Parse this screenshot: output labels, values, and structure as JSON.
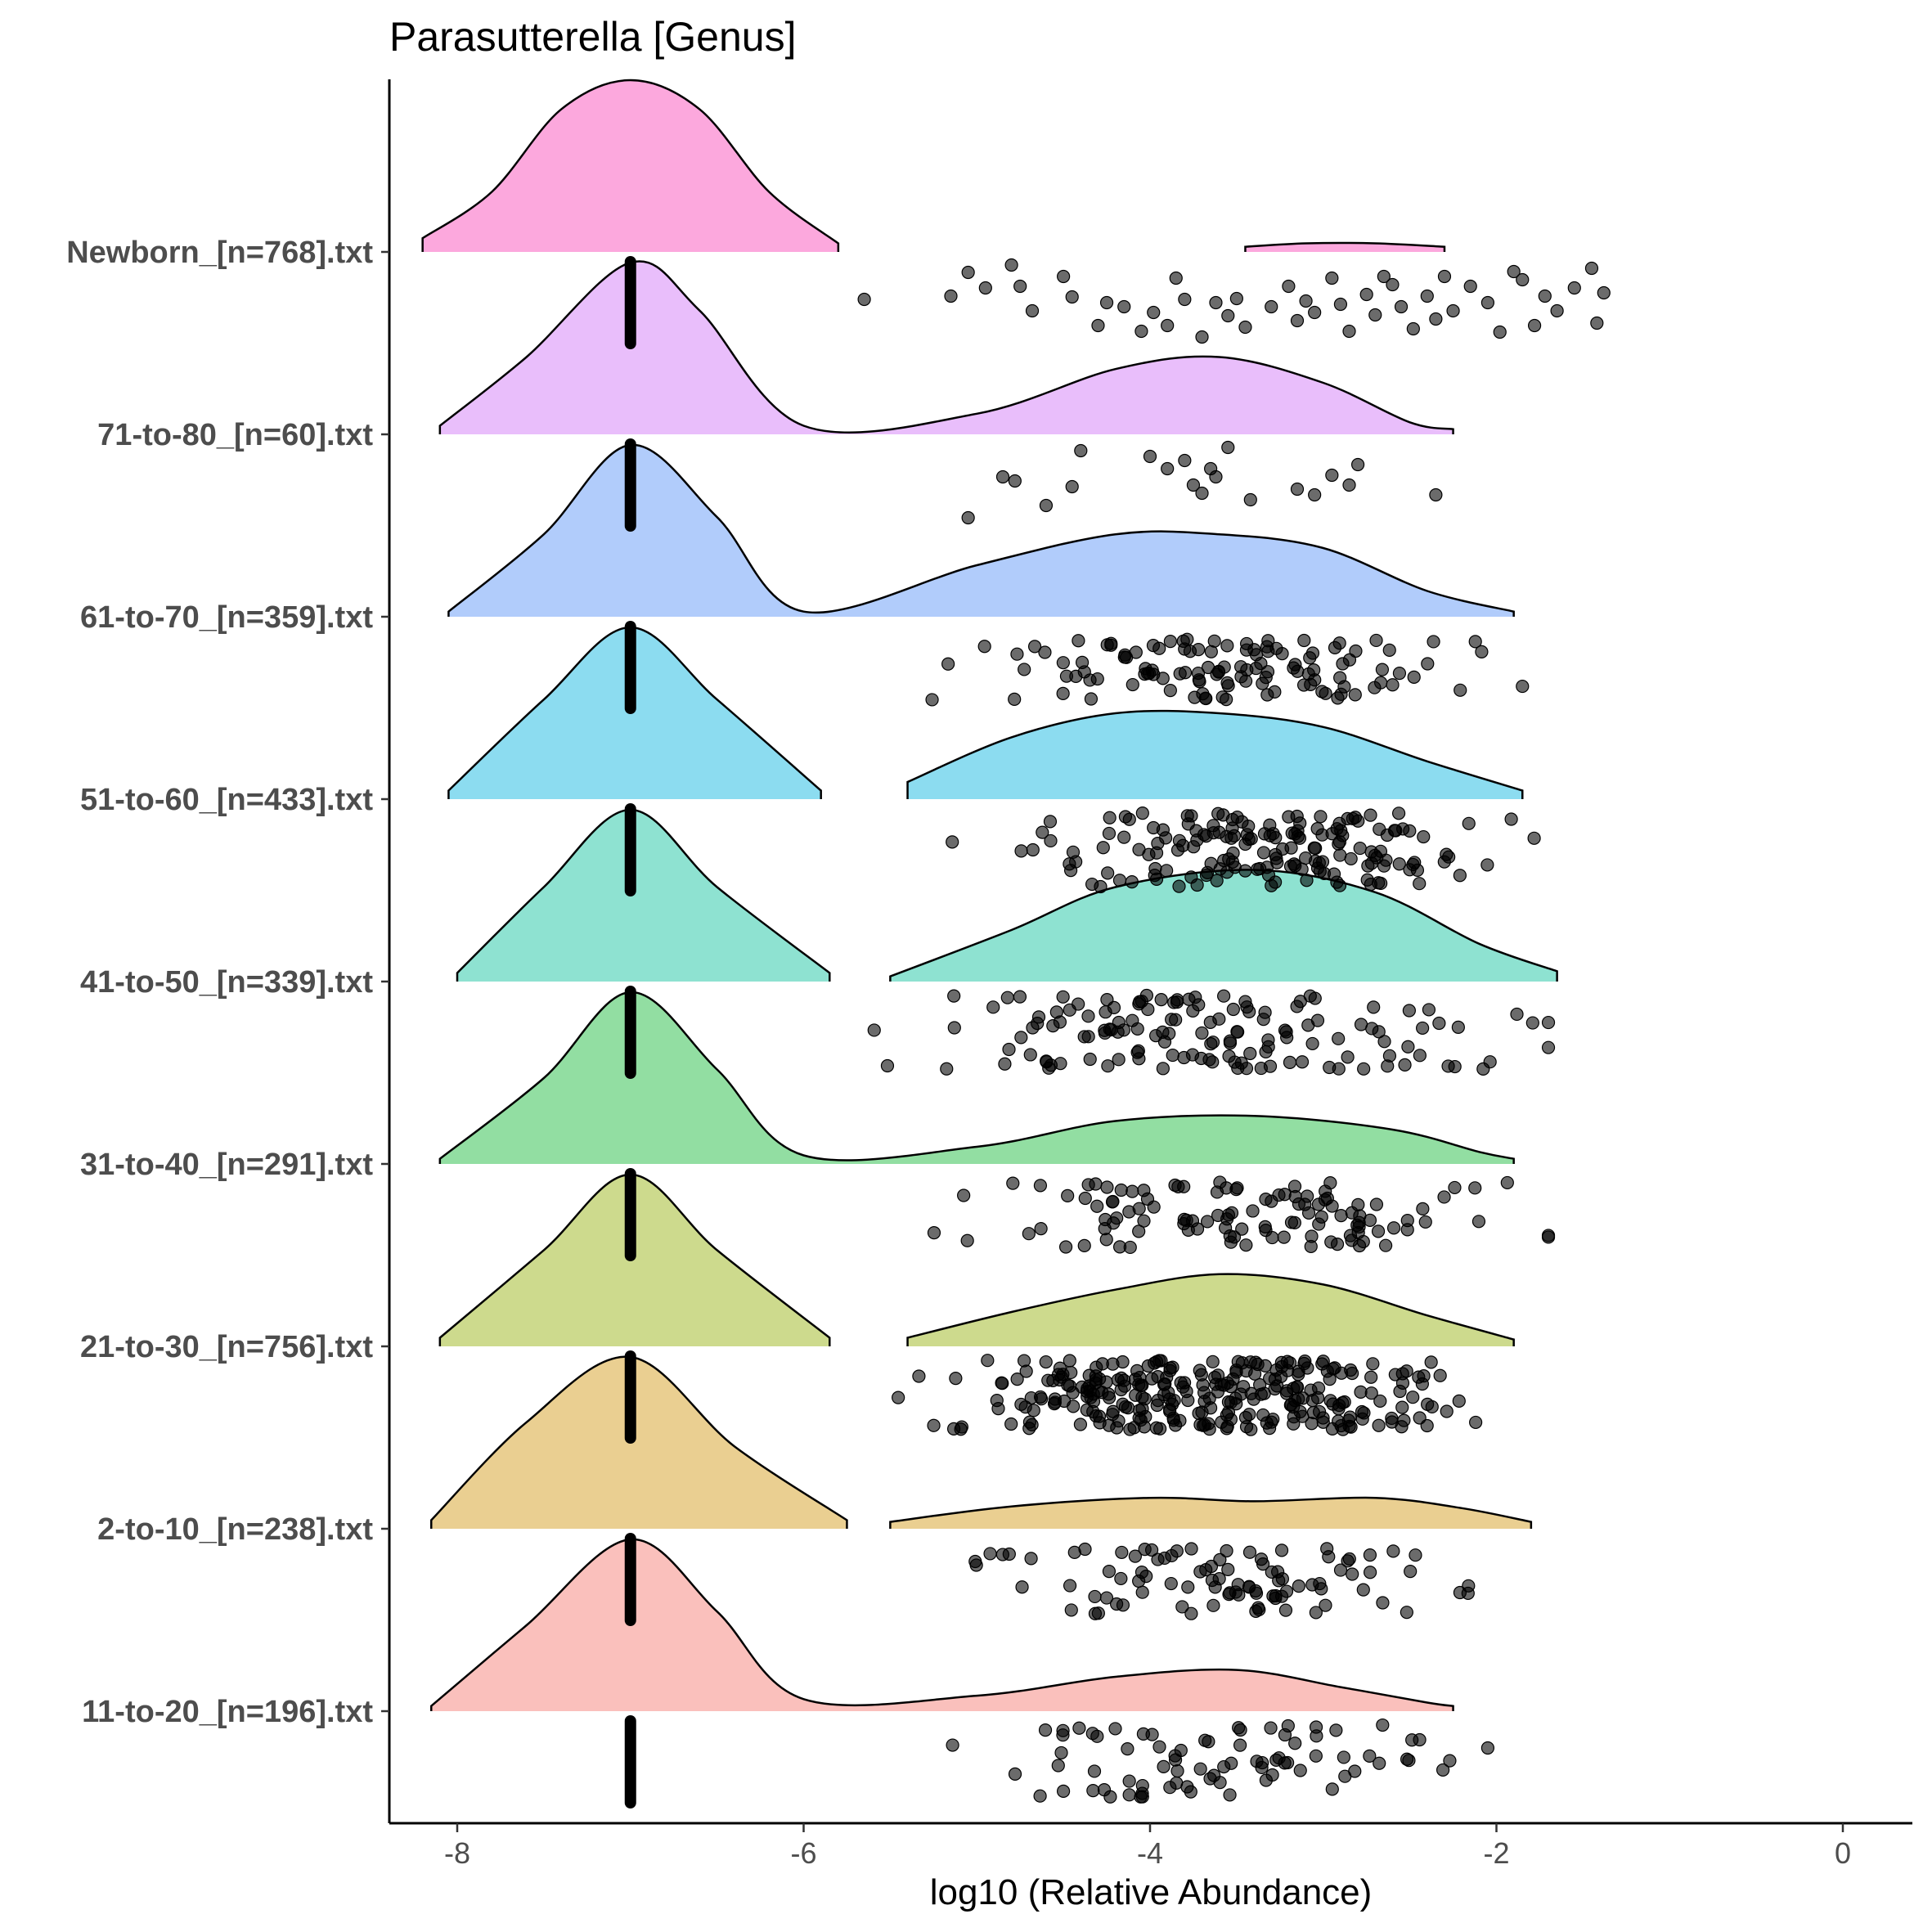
{
  "chart_data": {
    "type": "raincloud",
    "title": "Parasutterella [Genus]",
    "xlabel": "log10 (Relative Abundance)",
    "ylabel": "",
    "xlim": [
      -8.4,
      0.4
    ],
    "xticks": [
      -8,
      -6,
      -4,
      -2,
      0
    ],
    "xtick_labels": [
      "-8",
      "-6",
      "-4",
      "-2",
      "0"
    ],
    "grid": false,
    "legend": "none",
    "zero_value": -7,
    "groups": [
      {
        "label": "Newborn_[n=768].txt",
        "color": "#fc9fd9",
        "density": {
          "x": [
            -8.2,
            -7.8,
            -7.4,
            -7.0,
            -6.6,
            -6.2,
            -5.8
          ],
          "h": [
            0.08,
            0.35,
            0.83,
            1.0,
            0.83,
            0.35,
            0.05
          ]
        },
        "density2": {
          "x": [
            -3.45,
            -3.1,
            -2.7,
            -2.3
          ],
          "h": [
            0.03,
            0.05,
            0.05,
            0.03
          ]
        },
        "points": [
          [
            -5.65,
            0.46
          ],
          [
            -5.15,
            0.42
          ],
          [
            -5.05,
            0.13
          ],
          [
            -4.95,
            0.32
          ],
          [
            -4.8,
            0.04
          ],
          [
            -4.75,
            0.3
          ],
          [
            -4.68,
            0.6
          ],
          [
            -4.5,
            0.18
          ],
          [
            -4.45,
            0.43
          ],
          [
            -4.3,
            0.78
          ],
          [
            -4.25,
            0.5
          ],
          [
            -4.15,
            0.55
          ],
          [
            -4.05,
            0.85
          ],
          [
            -3.98,
            0.62
          ],
          [
            -3.9,
            0.78
          ],
          [
            -3.85,
            0.2
          ],
          [
            -3.8,
            0.46
          ],
          [
            -3.7,
            0.92
          ],
          [
            -3.62,
            0.5
          ],
          [
            -3.55,
            0.66
          ],
          [
            -3.5,
            0.45
          ],
          [
            -3.45,
            0.8
          ],
          [
            -3.3,
            0.55
          ],
          [
            -3.2,
            0.3
          ],
          [
            -3.15,
            0.72
          ],
          [
            -3.1,
            0.48
          ],
          [
            -3.05,
            0.62
          ],
          [
            -2.95,
            0.2
          ],
          [
            -2.9,
            0.52
          ],
          [
            -2.85,
            0.85
          ],
          [
            -2.75,
            0.4
          ],
          [
            -2.7,
            0.65
          ],
          [
            -2.65,
            0.18
          ],
          [
            -2.6,
            0.28
          ],
          [
            -2.55,
            0.55
          ],
          [
            -2.48,
            0.82
          ],
          [
            -2.4,
            0.42
          ],
          [
            -2.35,
            0.7
          ],
          [
            -2.3,
            0.18
          ],
          [
            -2.25,
            0.6
          ],
          [
            -2.15,
            0.3
          ],
          [
            -2.05,
            0.5
          ],
          [
            -1.98,
            0.86
          ],
          [
            -1.9,
            0.12
          ],
          [
            -1.85,
            0.22
          ],
          [
            -1.78,
            0.78
          ],
          [
            -1.72,
            0.42
          ],
          [
            -1.65,
            0.6
          ],
          [
            -1.55,
            0.32
          ],
          [
            -1.45,
            0.08
          ],
          [
            -1.42,
            0.75
          ],
          [
            -1.38,
            0.38
          ]
        ]
      },
      {
        "label": "71-to-80_[n=60].txt",
        "color": "#e7b7fb",
        "density": {
          "x": [
            -8.1,
            -7.6,
            -7.0,
            -6.6,
            -6.0,
            -5.0,
            -4.2,
            -3.6,
            -3.0,
            -2.5,
            -2.25
          ],
          "h": [
            0.05,
            0.45,
            1.0,
            0.72,
            0.05,
            0.12,
            0.38,
            0.45,
            0.3,
            0.07,
            0.03
          ]
        },
        "points": [
          [
            -5.05,
            0.9
          ],
          [
            -4.85,
            0.4
          ],
          [
            -4.78,
            0.45
          ],
          [
            -4.6,
            0.75
          ],
          [
            -4.45,
            0.52
          ],
          [
            -4.4,
            0.08
          ],
          [
            -4.0,
            0.15
          ],
          [
            -3.9,
            0.3
          ],
          [
            -3.8,
            0.2
          ],
          [
            -3.75,
            0.5
          ],
          [
            -3.7,
            0.6
          ],
          [
            -3.65,
            0.3
          ],
          [
            -3.62,
            0.4
          ],
          [
            -3.55,
            0.04
          ],
          [
            -3.42,
            0.68
          ],
          [
            -3.15,
            0.55
          ],
          [
            -3.05,
            0.62
          ],
          [
            -2.95,
            0.38
          ],
          [
            -2.85,
            0.5
          ],
          [
            -2.8,
            0.25
          ],
          [
            -2.35,
            0.62
          ]
        ]
      },
      {
        "label": "61-to-70_[n=359].txt",
        "color": "#a9c7fb",
        "density": {
          "x": [
            -8.05,
            -7.5,
            -7.0,
            -6.5,
            -6.0,
            -5.0,
            -4.2,
            -3.6,
            -3.0,
            -2.4,
            -1.9
          ],
          "h": [
            0.03,
            0.48,
            1.0,
            0.58,
            0.03,
            0.3,
            0.48,
            0.48,
            0.4,
            0.15,
            0.03
          ]
        },
        "points": "random:120:-6.05:-1.85:0.15:0.9"
      },
      {
        "label": "51-to-60_[n=433].txt",
        "color": "#7fd8ee",
        "density": {
          "x": [
            -8.05,
            -7.5,
            -7.0,
            -6.5,
            -5.9
          ],
          "h": [
            0.05,
            0.58,
            1.0,
            0.58,
            0.05
          ]
        },
        "density2": {
          "x": [
            -5.4,
            -4.8,
            -4.2,
            -3.6,
            -3.0,
            -2.4,
            -1.85
          ],
          "h": [
            0.1,
            0.36,
            0.5,
            0.5,
            0.42,
            0.22,
            0.05
          ]
        },
        "points": "random:170:-5.6:-1.75:0.05:0.95"
      },
      {
        "label": "41-to-50_[n=339].txt",
        "color": "#82dfcc",
        "density": {
          "x": [
            -8.0,
            -7.5,
            -7.0,
            -6.5,
            -5.85
          ],
          "h": [
            0.05,
            0.55,
            1.0,
            0.55,
            0.05
          ]
        },
        "density2": {
          "x": [
            -5.5,
            -4.8,
            -4.2,
            -3.4,
            -2.7,
            -2.1,
            -1.65
          ],
          "h": [
            0.03,
            0.3,
            0.55,
            0.65,
            0.52,
            0.22,
            0.06
          ]
        },
        "points": "random:140:-6.05:-1.7:0.05:0.95"
      },
      {
        "label": "31-to-40_[n=291].txt",
        "color": "#86da98",
        "density": {
          "x": [
            -8.1,
            -7.5,
            -7.0,
            -6.5,
            -6.0,
            -5.0,
            -4.2,
            -3.4,
            -2.6,
            -2.1,
            -1.9
          ],
          "h": [
            0.03,
            0.5,
            1.0,
            0.55,
            0.05,
            0.1,
            0.25,
            0.28,
            0.2,
            0.07,
            0.03
          ]
        },
        "points": "random:115:-6.1:-1.7:0.1:0.9"
      },
      {
        "label": "21-to-30_[n=756].txt",
        "color": "#c8d681",
        "density": {
          "x": [
            -8.1,
            -7.5,
            -7.0,
            -6.5,
            -5.85
          ],
          "h": [
            0.05,
            0.56,
            1.0,
            0.56,
            0.05
          ]
        },
        "density2": {
          "x": [
            -5.4,
            -4.8,
            -4.2,
            -3.6,
            -3.0,
            -2.4,
            -1.9
          ],
          "h": [
            0.05,
            0.2,
            0.33,
            0.42,
            0.36,
            0.18,
            0.04
          ]
        },
        "points": "random:290:-6.0:-1.95:0.05:0.9"
      },
      {
        "label": "2-to-10_[n=238].txt",
        "color": "#e8ca85",
        "density": {
          "x": [
            -8.15,
            -7.6,
            -7.0,
            -6.4,
            -5.75
          ],
          "h": [
            0.05,
            0.62,
            1.0,
            0.48,
            0.05
          ]
        },
        "density2": {
          "x": [
            -5.5,
            -4.8,
            -4.0,
            -3.4,
            -2.7,
            -2.2,
            -1.8
          ],
          "h": [
            0.04,
            0.13,
            0.18,
            0.16,
            0.18,
            0.12,
            0.04
          ]
        },
        "points": "random:95:-5.85:-1.95:0.1:0.92"
      },
      {
        "label": "11-to-20_[n=196].txt",
        "color": "#f9b9b5",
        "density": {
          "x": [
            -8.15,
            -7.6,
            -7.0,
            -6.5,
            -6.0,
            -5.0,
            -4.2,
            -3.5,
            -2.9,
            -2.4,
            -2.25
          ],
          "h": [
            0.03,
            0.5,
            1.0,
            0.58,
            0.07,
            0.09,
            0.2,
            0.24,
            0.14,
            0.05,
            0.03
          ]
        },
        "points": "random:80:-5.7:-2.05:0.05:0.95"
      }
    ]
  }
}
